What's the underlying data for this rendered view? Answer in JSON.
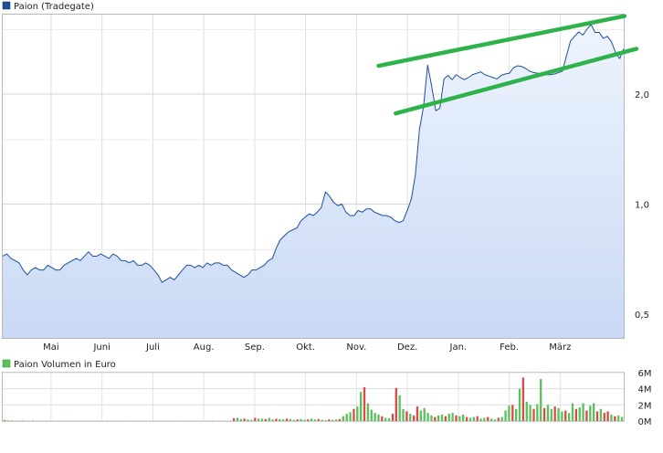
{
  "chart_data": [
    {
      "type": "area",
      "legend": "Paion (Tradegate)",
      "legend_position": "top-left",
      "x_tick_labels": [
        "Mai",
        "Juni",
        "Juli",
        "Aug.",
        "Sep.",
        "Okt.",
        "Nov.",
        "Dez.",
        "Jan.",
        "Feb.",
        "März"
      ],
      "y_tick_labels": [
        "0,5",
        "1,0",
        "2,0"
      ],
      "y_ticks": [
        0.5,
        1.0,
        2.0
      ],
      "y_scale": "log",
      "ylim": [
        0.43,
        3.3
      ],
      "grid": true,
      "colors": {
        "line": "#1f4f9a",
        "fill_top": "#c9d9f5",
        "fill_bottom": "#e9f0fc",
        "trend": "#2db34a"
      },
      "series": [
        {
          "name": "Paion (Tradegate)",
          "values": [
            0.72,
            0.73,
            0.71,
            0.7,
            0.69,
            0.66,
            0.64,
            0.66,
            0.67,
            0.66,
            0.66,
            0.68,
            0.67,
            0.66,
            0.66,
            0.68,
            0.69,
            0.7,
            0.71,
            0.7,
            0.72,
            0.74,
            0.72,
            0.72,
            0.73,
            0.72,
            0.71,
            0.73,
            0.72,
            0.7,
            0.7,
            0.69,
            0.7,
            0.68,
            0.68,
            0.69,
            0.68,
            0.66,
            0.64,
            0.61,
            0.62,
            0.63,
            0.62,
            0.64,
            0.66,
            0.68,
            0.68,
            0.67,
            0.68,
            0.67,
            0.69,
            0.68,
            0.69,
            0.69,
            0.68,
            0.68,
            0.66,
            0.65,
            0.64,
            0.63,
            0.64,
            0.66,
            0.66,
            0.67,
            0.68,
            0.7,
            0.71,
            0.76,
            0.8,
            0.82,
            0.84,
            0.85,
            0.86,
            0.9,
            0.92,
            0.94,
            0.93,
            0.95,
            0.98,
            1.08,
            1.05,
            1.01,
            0.99,
            1.0,
            0.95,
            0.93,
            0.93,
            0.96,
            0.95,
            0.97,
            0.97,
            0.95,
            0.94,
            0.93,
            0.93,
            0.92,
            0.9,
            0.89,
            0.9,
            0.96,
            1.03,
            1.2,
            1.6,
            1.85,
            2.4,
            2.1,
            1.8,
            1.83,
            2.2,
            2.25,
            2.19,
            2.26,
            2.22,
            2.19,
            2.22,
            2.26,
            2.28,
            2.3,
            2.26,
            2.24,
            2.22,
            2.2,
            2.25,
            2.27,
            2.28,
            2.36,
            2.39,
            2.38,
            2.35,
            2.31,
            2.29,
            2.28,
            2.27,
            2.26,
            2.26,
            2.27,
            2.29,
            2.31,
            2.55,
            2.8,
            2.88,
            2.96,
            2.9,
            3.01,
            3.1,
            2.95,
            2.95,
            2.84,
            2.88,
            2.78,
            2.6,
            2.5,
            2.66
          ]
        }
      ],
      "annotations": [
        {
          "type": "trendline",
          "label": "upper channel",
          "x_start": 0.593,
          "x_end": 0.981,
          "y_start": 2.39,
          "y_end": 3.27
        },
        {
          "type": "trendline",
          "label": "lower channel",
          "x_start": 0.62,
          "x_end": 1.0,
          "y_start": 1.77,
          "y_end": 2.66
        }
      ]
    },
    {
      "type": "bar",
      "legend": "Paion Volumen in Euro",
      "legend_position": "top-left",
      "y_tick_labels": [
        "0M",
        "2M",
        "4M",
        "6M"
      ],
      "y_ticks": [
        0,
        2,
        4,
        6
      ],
      "ylim": [
        0,
        6
      ],
      "grid": true,
      "colors": {
        "up": "#5ac25a",
        "down": "#d94a4a"
      },
      "series": [
        {
          "name": "Paion Volumen in Euro",
          "values": [
            0.15,
            0.08,
            0.05,
            0.04,
            0.05,
            0.06,
            0.04,
            0.03,
            0.04,
            0.03,
            0.03,
            0.02,
            0.03,
            0.03,
            0.02,
            0.02,
            0.03,
            0.02,
            0.02,
            0.03,
            0.02,
            0.02,
            0.03,
            0.02,
            0.02,
            0.02,
            0.02,
            0.02,
            0.02,
            0.03,
            0.02,
            0.02,
            0.02,
            0.03,
            0.02,
            0.02,
            0.02,
            0.02,
            0.02,
            0.02,
            0.02,
            0.02,
            0.02,
            0.02,
            0.02,
            0.02,
            0.03,
            0.02,
            0.02,
            0.02,
            0.02,
            0.02,
            0.02,
            0.02,
            0.02,
            0.02,
            0.02,
            0.02,
            0.03,
            0.03,
            0.02,
            0.03,
            0.02,
            0.02,
            0.03,
            0.35,
            0.4,
            0.25,
            0.3,
            0.2,
            0.15,
            0.4,
            0.3,
            0.3,
            0.25,
            0.4,
            0.2,
            0.3,
            0.25,
            0.2,
            0.3,
            0.25,
            0.15,
            0.2,
            0.25,
            0.15,
            0.2,
            0.3,
            0.2,
            0.25,
            0.15,
            0.1,
            0.2,
            0.15,
            0.2,
            0.25,
            0.6,
            0.9,
            1.1,
            1.5,
            1.8,
            3.6,
            4.2,
            2.2,
            1.4,
            1.0,
            0.8,
            0.6,
            0.4,
            0.35,
            0.9,
            4.1,
            3.2,
            1.5,
            1.2,
            0.9,
            0.7,
            1.8,
            1.3,
            1.6,
            1.0,
            0.7,
            0.5,
            0.7,
            0.8,
            0.6,
            0.9,
            1.0,
            0.7,
            0.6,
            0.8,
            0.5,
            0.4,
            0.5,
            0.6,
            0.3,
            0.4,
            0.5,
            0.3,
            0.2,
            0.4,
            0.5,
            1.3,
            1.9,
            2.0,
            1.5,
            4.0,
            5.4,
            2.4,
            2.0,
            1.5,
            2.1,
            5.2,
            1.6,
            2.0,
            1.5,
            1.8,
            1.6,
            1.2,
            1.3,
            1.0,
            2.2,
            1.5,
            1.7,
            2.2,
            1.3,
            1.9,
            2.2,
            1.2,
            1.5,
            1.0,
            1.2,
            0.8,
            0.6,
            0.7,
            0.5
          ]
        }
      ]
    }
  ]
}
